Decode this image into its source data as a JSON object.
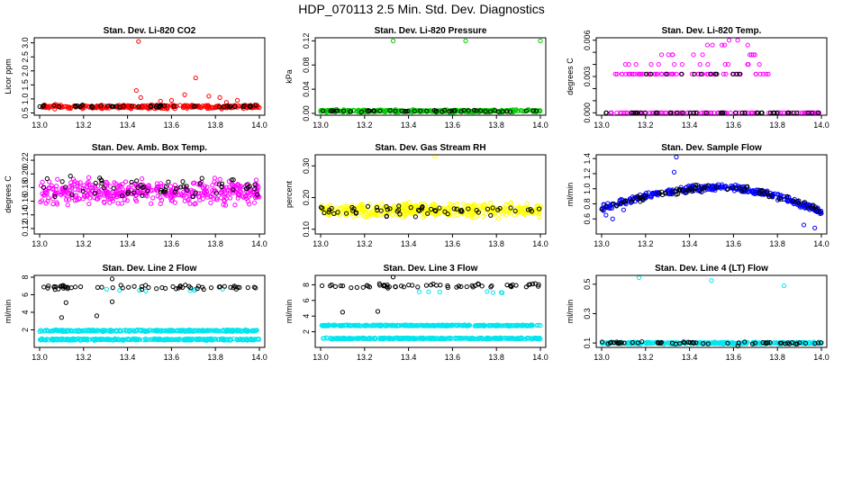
{
  "page": {
    "title": "HDP_070113  2.5 Min. Std. Dev. Diagnostics"
  },
  "chart_data": [
    {
      "type": "scatter",
      "title": "Stan. Dev. Li-820 CO2",
      "ylabel": "Licor ppm",
      "xlim": [
        13.0,
        14.0
      ],
      "xticks": [
        "13.0",
        "13.2",
        "13.4",
        "13.6",
        "13.8",
        "14.0"
      ],
      "ylim": [
        0.42,
        3.18
      ],
      "yticks": [
        0.5,
        1.0,
        1.5,
        2.0,
        2.5,
        3.0
      ],
      "ytick_labels": [
        "0.5",
        "1.0",
        "1.5",
        "2.0",
        "2.5",
        "3.0"
      ],
      "series": [
        {
          "name": "main",
          "color": "#ff0000",
          "points": [
            [
              13.45,
              3.05
            ],
            [
              13.71,
              1.75
            ],
            [
              13.44,
              1.3
            ],
            [
              13.46,
              1.05
            ],
            [
              13.66,
              1.15
            ],
            [
              13.82,
              1.05
            ],
            [
              13.77,
              1.1
            ],
            [
              13.9,
              0.95
            ],
            [
              13.6,
              0.95
            ],
            [
              13.55,
              0.92
            ],
            [
              13.85,
              0.88
            ]
          ],
          "band": {
            "count": 300,
            "center": 0.72,
            "spread": 0.09,
            "seed": 11
          }
        },
        {
          "name": "overlay",
          "color": "#000000",
          "band": {
            "count": 50,
            "center": 0.74,
            "spread": 0.06,
            "seed": 12
          }
        }
      ]
    },
    {
      "type": "scatter",
      "title": "Stan. Dev. Li-820 Pressure",
      "ylabel": "kPa",
      "xlim": [
        13.0,
        14.0
      ],
      "xticks": [
        "13.0",
        "13.2",
        "13.4",
        "13.6",
        "13.8",
        "14.0"
      ],
      "ylim": [
        -0.003,
        0.125
      ],
      "yticks": [
        0.0,
        0.04,
        0.08,
        0.12
      ],
      "ytick_labels": [
        "0.00",
        "0.04",
        "0.08",
        "0.12"
      ],
      "series": [
        {
          "name": "main",
          "color": "#00cc00",
          "points": [
            [
              13.33,
              0.12
            ],
            [
              13.66,
              0.12
            ],
            [
              14.0,
              0.12
            ]
          ],
          "band": {
            "count": 320,
            "center": 0.004,
            "spread": 0.003,
            "seed": 21
          }
        },
        {
          "name": "overlay",
          "color": "#000000",
          "band": {
            "count": 50,
            "center": 0.004,
            "spread": 0.002,
            "seed": 22
          }
        }
      ]
    },
    {
      "type": "scatter",
      "title": "Stan. Dev. Li-820 Temp.",
      "ylabel": "degrees C",
      "xlim": [
        13.0,
        14.0
      ],
      "xticks": [
        "13.0",
        "13.2",
        "13.4",
        "13.6",
        "13.8",
        "14.0"
      ],
      "ylim": [
        -0.0002,
        0.0062
      ],
      "yticks": [
        0.0,
        0.003,
        0.006
      ],
      "ytick_labels": [
        "0.000",
        "0.003",
        "0.006"
      ],
      "minor_yticks": [
        0.001,
        0.002,
        0.004,
        0.005
      ],
      "series": [
        {
          "name": "main",
          "color": "#ff00ff",
          "levels": [
            {
              "y": 0.0,
              "x": [
                13.0,
                14.0
              ],
              "count": 110
            },
            {
              "y": 0.0032,
              "x": [
                13.06,
                13.76
              ],
              "count": 60
            },
            {
              "y": 0.004,
              "x": [
                13.1,
                13.72
              ],
              "count": 14
            },
            {
              "y": 0.0048,
              "x": [
                13.15,
                13.7
              ],
              "count": 10
            },
            {
              "y": 0.0056,
              "x": [
                13.45,
                13.72
              ],
              "count": 5
            },
            {
              "y": 0.006,
              "x": [
                13.55,
                13.62
              ],
              "count": 2
            }
          ],
          "seed": 31
        },
        {
          "name": "overlay",
          "color": "#000000",
          "levels": [
            {
              "y": 0.0,
              "x": [
                13.0,
                14.0
              ],
              "count": 40
            },
            {
              "y": 0.0032,
              "x": [
                13.12,
                13.72
              ],
              "count": 12
            }
          ],
          "seed": 32
        }
      ]
    },
    {
      "type": "scatter",
      "title": "Stan. Dev. Amb. Box Temp.",
      "ylabel": "degrees C",
      "xlim": [
        13.0,
        14.0
      ],
      "xticks": [
        "13.0",
        "13.2",
        "13.4",
        "13.6",
        "13.8",
        "14.0"
      ],
      "ylim": [
        0.112,
        0.228
      ],
      "yticks": [
        0.12,
        0.14,
        0.16,
        0.18,
        0.2,
        0.22
      ],
      "ytick_labels": [
        "0.12",
        "0.14",
        "0.16",
        "0.18",
        "0.20",
        "0.22"
      ],
      "series": [
        {
          "name": "main",
          "color": "#ff00ff",
          "band": {
            "count": 420,
            "center": 0.173,
            "spread": 0.024,
            "seed": 41
          }
        },
        {
          "name": "overlay",
          "color": "#000000",
          "band": {
            "count": 60,
            "center": 0.18,
            "spread": 0.02,
            "seed": 42
          }
        }
      ]
    },
    {
      "type": "scatter",
      "title": "Stan. Dev. Gas Stream RH",
      "ylabel": "percent",
      "xlim": [
        13.0,
        14.0
      ],
      "xticks": [
        "13.0",
        "13.2",
        "13.4",
        "13.6",
        "13.8",
        "14.0"
      ],
      "ylim": [
        0.085,
        0.335
      ],
      "yticks": [
        0.1,
        0.2,
        0.3
      ],
      "ytick_labels": [
        "0.10",
        "0.20",
        "0.30"
      ],
      "series": [
        {
          "name": "main",
          "color": "#ffff00",
          "points": [
            [
              13.52,
              0.33
            ]
          ],
          "band": {
            "count": 420,
            "center": 0.16,
            "spread": 0.03,
            "seed": 51
          }
        },
        {
          "name": "overlay",
          "color": "#000000",
          "band": {
            "count": 60,
            "center": 0.16,
            "spread": 0.025,
            "seed": 52
          }
        }
      ]
    },
    {
      "type": "scatter",
      "title": "Stan. Dev. Sample Flow",
      "ylabel": "ml/min",
      "xlim": [
        13.0,
        14.0
      ],
      "xticks": [
        "13.0",
        "13.2",
        "13.4",
        "13.6",
        "13.8",
        "14.0"
      ],
      "ylim": [
        0.4,
        1.45
      ],
      "yticks": [
        0.6,
        0.8,
        1.0,
        1.2,
        1.4
      ],
      "ytick_labels": [
        "0.6",
        "0.8",
        "1.0",
        "1.2",
        "1.4"
      ],
      "series": [
        {
          "name": "main",
          "color": "#0000ff",
          "points": [
            [
              13.34,
              1.42
            ],
            [
              13.33,
              1.22
            ],
            [
              13.02,
              0.65
            ],
            [
              13.05,
              0.6
            ],
            [
              13.97,
              0.48
            ],
            [
              13.92,
              0.52
            ],
            [
              13.1,
              0.72
            ]
          ],
          "curve": {
            "count": 360,
            "x": [
              13.0,
              14.0
            ],
            "y0": 0.75,
            "peak": 1.02,
            "peakx": 13.55,
            "yend": 0.7,
            "spread": 0.05,
            "seed": 61
          }
        },
        {
          "name": "overlay",
          "color": "#000000",
          "curve": {
            "count": 70,
            "x": [
              13.0,
              14.0
            ],
            "y0": 0.75,
            "peak": 1.02,
            "peakx": 13.55,
            "yend": 0.7,
            "spread": 0.06,
            "seed": 62
          }
        }
      ]
    },
    {
      "type": "scatter",
      "title": "Stan. Dev. Line 2 Flow",
      "ylabel": "ml/min",
      "xlim": [
        13.0,
        14.0
      ],
      "xticks": [
        "13.0",
        "13.2",
        "13.4",
        "13.6",
        "13.8",
        "14.0"
      ],
      "ylim": [
        0.0,
        8.2
      ],
      "yticks": [
        2,
        4,
        6,
        8
      ],
      "ytick_labels": [
        "2",
        "4",
        "6",
        "8"
      ],
      "series": [
        {
          "name": "cyan",
          "color": "#00e5ee",
          "levels": [
            {
              "y": 1.9,
              "x": [
                13.0,
                14.0
              ],
              "count": 320,
              "jitter": 0.12
            },
            {
              "y": 0.9,
              "x": [
                13.0,
                14.0
              ],
              "count": 320,
              "jitter": 0.12
            },
            {
              "y": 6.5,
              "x": [
                13.3,
                14.0
              ],
              "count": 8,
              "jitter": 0.2
            }
          ],
          "seed": 71
        },
        {
          "name": "overlay",
          "color": "#000000",
          "points": [
            [
              13.04,
              7.0
            ],
            [
              13.07,
              6.6
            ],
            [
              13.1,
              3.4
            ],
            [
              13.12,
              5.1
            ],
            [
              13.26,
              3.6
            ],
            [
              13.33,
              7.8
            ],
            [
              13.33,
              5.2
            ]
          ],
          "levels": [
            {
              "y": 6.85,
              "x": [
                13.0,
                14.0
              ],
              "count": 60,
              "jitter": 0.3
            }
          ],
          "seed": 72
        }
      ]
    },
    {
      "type": "scatter",
      "title": "Stan. Dev. Line 3 Flow",
      "ylabel": "ml/min",
      "xlim": [
        13.0,
        14.0
      ],
      "xticks": [
        "13.0",
        "13.2",
        "13.4",
        "13.6",
        "13.8",
        "14.0"
      ],
      "ylim": [
        0.0,
        9.2
      ],
      "yticks": [
        2,
        4,
        6,
        8
      ],
      "ytick_labels": [
        "2",
        "4",
        "6",
        "8"
      ],
      "series": [
        {
          "name": "cyan",
          "color": "#00e5ee",
          "levels": [
            {
              "y": 2.8,
              "x": [
                13.0,
                14.0
              ],
              "count": 330,
              "jitter": 0.1
            },
            {
              "y": 1.15,
              "x": [
                13.0,
                14.0
              ],
              "count": 330,
              "jitter": 0.1
            },
            {
              "y": 7.0,
              "x": [
                13.3,
                14.0
              ],
              "count": 7,
              "jitter": 0.2
            }
          ],
          "seed": 81
        },
        {
          "name": "overlay",
          "color": "#000000",
          "points": [
            [
              13.33,
              9.0
            ],
            [
              13.1,
              4.5
            ],
            [
              13.26,
              4.6
            ],
            [
              13.05,
              8.0
            ]
          ],
          "levels": [
            {
              "y": 7.9,
              "x": [
                13.0,
                14.0
              ],
              "count": 60,
              "jitter": 0.35
            }
          ],
          "seed": 82
        }
      ]
    },
    {
      "type": "scatter",
      "title": "Stan. Dev. Line 4 (LT) Flow",
      "ylabel": "ml/min",
      "xlim": [
        13.0,
        14.0
      ],
      "xticks": [
        "13.0",
        "13.2",
        "13.4",
        "13.6",
        "13.8",
        "14.0"
      ],
      "ylim": [
        0.07,
        0.56
      ],
      "yticks": [
        0.1,
        0.3,
        0.5
      ],
      "ytick_labels": [
        "0.1",
        "0.3",
        "0.5"
      ],
      "series": [
        {
          "name": "cyan",
          "color": "#00e5ee",
          "points": [
            [
              13.17,
              0.545
            ],
            [
              13.5,
              0.525
            ],
            [
              13.83,
              0.49
            ]
          ],
          "levels": [
            {
              "y": 0.1,
              "x": [
                13.0,
                14.0
              ],
              "count": 380,
              "jitter": 0.008
            }
          ],
          "seed": 91
        },
        {
          "name": "overlay",
          "color": "#000000",
          "points": [
            [
              13.62,
              0.08
            ]
          ],
          "levels": [
            {
              "y": 0.1,
              "x": [
                13.0,
                14.0
              ],
              "count": 55,
              "jitter": 0.01
            }
          ],
          "seed": 92
        }
      ]
    }
  ]
}
